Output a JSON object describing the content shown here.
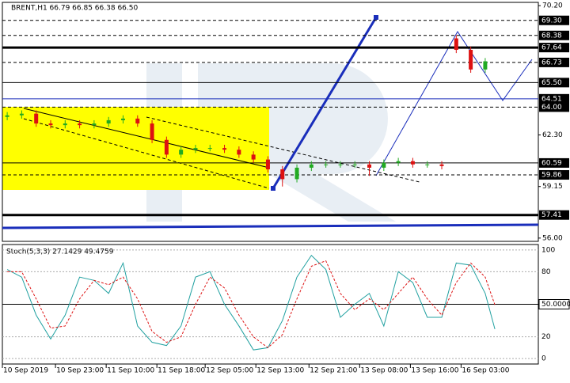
{
  "chart_data": [
    {
      "type": "candlestick",
      "header": "BRENT,H1  66.79 66.85 66.38 66.50",
      "x": [
        0,
        3,
        6,
        9,
        12,
        15,
        18,
        21,
        24,
        27,
        30,
        33,
        36,
        39,
        42,
        45,
        48,
        51,
        54,
        57,
        60,
        63,
        66,
        69,
        72,
        75,
        78,
        81,
        84,
        87,
        90,
        93,
        96,
        99
      ],
      "open": [
        63.4,
        63.5,
        63.6,
        63.0,
        62.9,
        63.0,
        62.9,
        63.0,
        63.2,
        63.3,
        63.0,
        62.0,
        61.1,
        61.4,
        61.5,
        61.5,
        61.4,
        61.1,
        60.8,
        60.2,
        59.6,
        60.3,
        60.5,
        60.5,
        60.5,
        60.5,
        60.3,
        60.6,
        60.7,
        60.5,
        60.5,
        68.2,
        67.5,
        66.3
      ],
      "high": [
        63.7,
        63.8,
        63.8,
        63.2,
        63.2,
        63.2,
        63.2,
        63.4,
        63.5,
        63.5,
        63.2,
        62.2,
        61.6,
        61.7,
        61.7,
        61.7,
        61.6,
        61.3,
        61.0,
        60.4,
        60.5,
        60.7,
        60.7,
        60.7,
        60.7,
        60.7,
        60.8,
        60.9,
        60.9,
        60.7,
        60.7,
        68.4,
        67.7,
        67.0
      ],
      "low": [
        63.2,
        63.3,
        62.8,
        62.7,
        62.7,
        62.7,
        62.7,
        62.8,
        63.0,
        62.8,
        61.8,
        60.9,
        60.9,
        61.2,
        61.3,
        61.2,
        60.9,
        60.6,
        60.0,
        59.15,
        59.4,
        60.1,
        60.3,
        60.3,
        60.3,
        59.8,
        60.1,
        60.4,
        60.3,
        60.3,
        60.2,
        67.3,
        66.1,
        66.1
      ],
      "close": [
        63.5,
        63.6,
        63.0,
        62.9,
        63.0,
        62.9,
        63.0,
        63.2,
        63.3,
        63.0,
        62.0,
        61.1,
        61.4,
        61.5,
        61.5,
        61.4,
        61.1,
        60.8,
        60.2,
        59.6,
        60.3,
        60.5,
        60.5,
        60.5,
        60.5,
        60.3,
        60.6,
        60.7,
        60.5,
        60.5,
        60.4,
        67.5,
        66.3,
        66.8
      ],
      "up_color": "#22aa22",
      "down_color": "#dd1111",
      "xlim": [
        -1,
        110
      ],
      "ylim": [
        55.8,
        70.4
      ],
      "yticks": [
        {
          "value": 70.2,
          "label": "70.20"
        },
        {
          "value": 62.3,
          "label": "62.30"
        },
        {
          "value": 59.15,
          "label": "59.15"
        },
        {
          "value": 56.0,
          "label": "56.00"
        }
      ],
      "levels": [
        {
          "value": 69.3,
          "label": "69.30",
          "style": "dash"
        },
        {
          "value": 68.38,
          "label": "68.38",
          "style": "dash"
        },
        {
          "value": 67.64,
          "label": "67.64",
          "style": "thick"
        },
        {
          "value": 66.73,
          "label": "66.73",
          "style": "dash"
        },
        {
          "value": 65.5,
          "label": "65.50",
          "style": "solid"
        },
        {
          "value": 64.51,
          "label": "64.51",
          "style": "blue"
        },
        {
          "value": 64.0,
          "label": "64.00",
          "style": "dash"
        },
        {
          "value": 60.59,
          "label": "60.59",
          "style": "solid"
        },
        {
          "value": 59.86,
          "label": "59.86",
          "style": "dash"
        },
        {
          "value": 57.41,
          "label": "57.41",
          "style": "thick"
        }
      ],
      "xticks": [
        {
          "value": -1,
          "label": "10 Sep 2019"
        },
        {
          "value": 10,
          "label": "10 Sep 23:00"
        },
        {
          "value": 20.5,
          "label": "11 Sep 10:00"
        },
        {
          "value": 31,
          "label": "11 Sep 18:00"
        },
        {
          "value": 41,
          "label": "12 Sep 05:00"
        },
        {
          "value": 51.5,
          "label": "12 Sep 13:00"
        },
        {
          "value": 62.5,
          "label": "12 Sep 21:00"
        },
        {
          "value": 73,
          "label": "13 Sep 08:00"
        },
        {
          "value": 83.5,
          "label": "13 Sep 16:00"
        },
        {
          "value": 94,
          "label": "16 Sep 03:00"
        }
      ]
    },
    {
      "type": "line",
      "title": "Stoch(5,3,3) 27.1429 49.4759",
      "x": [
        0,
        3,
        6,
        9,
        12,
        15,
        18,
        21,
        24,
        27,
        30,
        33,
        36,
        39,
        42,
        45,
        48,
        51,
        54,
        57,
        60,
        63,
        66,
        69,
        72,
        75,
        78,
        81,
        84,
        87,
        90,
        93,
        96,
        99,
        101
      ],
      "series": [
        {
          "color": "#20a0a0",
          "values": [
            82,
            75,
            40,
            18,
            40,
            75,
            72,
            60,
            88,
            30,
            15,
            12,
            30,
            75,
            80,
            50,
            30,
            8,
            10,
            35,
            75,
            95,
            82,
            38,
            50,
            60,
            30,
            80,
            70,
            38,
            38,
            88,
            86,
            60,
            27.1429
          ]
        },
        {
          "color": "#dd1111",
          "values": [
            80,
            80,
            55,
            28,
            30,
            55,
            72,
            68,
            75,
            55,
            25,
            15,
            20,
            50,
            75,
            65,
            40,
            20,
            10,
            22,
            55,
            85,
            90,
            60,
            45,
            55,
            45,
            60,
            75,
            55,
            40,
            70,
            88,
            75,
            49.4759
          ]
        }
      ],
      "xlim": [
        -1,
        110
      ],
      "ylim": [
        -5,
        105
      ],
      "yticks": [
        100,
        80,
        {
          "value": 50,
          "label": "50.0000"
        },
        20,
        0
      ]
    }
  ]
}
